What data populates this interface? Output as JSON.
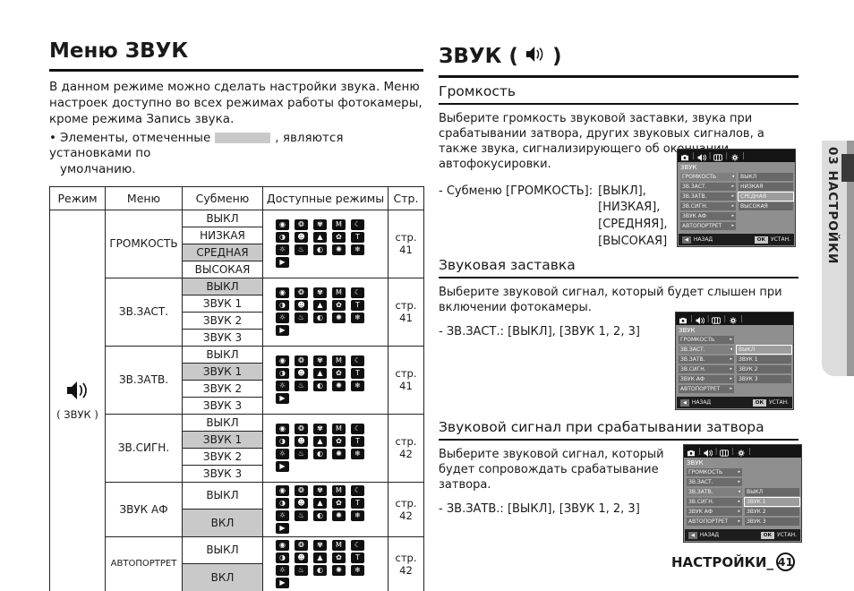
{
  "doc": {
    "left": {
      "title": "Меню ЗВУК",
      "intro": "В данном режиме можно сделать настройки звука. Меню настроек доступно во всех режимах работы фотокамеры, кроме режима Запись звука.",
      "bullet_before": "Элементы, отмеченные",
      "bullet_after": ", являются установками по",
      "bullet_line2": "умолчанию.",
      "table": {
        "headers": [
          "Режим",
          "Меню",
          "Субменю",
          "Доступные режимы",
          "Стр."
        ],
        "mode_cell": {
          "icon": "speaker-icon",
          "label": "( ЗВУК )"
        },
        "groups": [
          {
            "menu": "ГРОМКОСТЬ",
            "options": [
              "ВЫКЛ",
              "НИЗКАЯ",
              "СРЕДНАЯ",
              "ВЫСОКАЯ"
            ],
            "default_index": 2,
            "page": "стр. 41",
            "tall": false
          },
          {
            "menu": "ЗВ.ЗАСТ.",
            "options": [
              "ВЫКЛ",
              "ЗВУК 1",
              "ЗВУК 2",
              "ЗВУК 3"
            ],
            "default_index": 0,
            "page": "стр. 41",
            "tall": false
          },
          {
            "menu": "ЗВ.ЗАТВ.",
            "options": [
              "ВЫКЛ",
              "ЗВУК 1",
              "ЗВУК 2",
              "ЗВУК 3"
            ],
            "default_index": 1,
            "page": "стр. 41",
            "tall": false
          },
          {
            "menu": "ЗВ.СИГН.",
            "options": [
              "ВЫКЛ",
              "ЗВУК 1",
              "ЗВУК 2",
              "ЗВУК 3"
            ],
            "default_index": 1,
            "page": "стр. 42",
            "tall": false
          },
          {
            "menu": "ЗВУК АФ",
            "options": [
              "ВЫКЛ",
              "ВКЛ"
            ],
            "default_index": 1,
            "page": "стр. 42",
            "tall": true
          },
          {
            "menu": "АВТОПОРТРЕТ",
            "options": [
              "ВЫКЛ",
              "ВКЛ"
            ],
            "default_index": 1,
            "page": "стр. 42",
            "tall": true
          }
        ],
        "available_modes": [
          {
            "name": "mode-auto-icon",
            "glyph": "◉"
          },
          {
            "name": "mode-program-icon",
            "glyph": "❂"
          },
          {
            "name": "mode-dis-icon",
            "glyph": "✾"
          },
          {
            "name": "mode-manual-icon",
            "glyph": "M"
          },
          {
            "name": "mode-night-icon",
            "glyph": "☾"
          },
          {
            "name": "mode-scene-icon",
            "glyph": "◑"
          },
          {
            "name": "mode-portrait-icon",
            "glyph": "☻"
          },
          {
            "name": "mode-landscape-icon",
            "glyph": "▲"
          },
          {
            "name": "mode-macro-icon",
            "glyph": "✿"
          },
          {
            "name": "mode-text-icon",
            "glyph": "T"
          },
          {
            "name": "mode-sunset-icon",
            "glyph": "☼"
          },
          {
            "name": "mode-dawn-icon",
            "glyph": "♨"
          },
          {
            "name": "mode-backlight-icon",
            "glyph": "◐"
          },
          {
            "name": "mode-fireworks-icon",
            "glyph": "✺"
          },
          {
            "name": "mode-beach-snow-icon",
            "glyph": "❄"
          },
          {
            "name": "mode-movie-icon",
            "glyph": "▶"
          }
        ]
      }
    },
    "right": {
      "title_prefix": "ЗВУК (",
      "title_suffix": ")",
      "sections": [
        {
          "heading": "Громкость",
          "body": "Выберите громкость звуковой заставки, звука при срабатывании затвора, других звуковых сигналов, а также звука, сигнализирующего об окончании автофокусировки.",
          "sub_label": "-  Субменю [ГРОМКОСТЬ]:",
          "sub_options": [
            "[ВЫКЛ],",
            "[НИЗКАЯ],",
            "[СРЕДНЯЯ],",
            "[ВЫСОКАЯ]"
          ]
        },
        {
          "heading": "Звуковая заставка",
          "body": "Выберите звуковой сигнал, который будет слышен при включении фотокамеры.",
          "sub_line": "- ЗВ.ЗАСТ.: [ВЫКЛ], [ЗВУК 1, 2, 3]"
        },
        {
          "heading": "Звуковой сигнал при срабатывании затвора",
          "body": "Выберите звуковой сигнал, который будет сопровождать срабатывание затвора.",
          "sub_line": "- ЗВ.ЗАТВ.: [ВЫКЛ], [ЗВУК 1, 2, 3]"
        }
      ],
      "footer": {
        "label": "НАСТРОЙКИ_",
        "page_number": "41"
      }
    },
    "side_tab": {
      "label": "03 НАСТРОЙКИ"
    },
    "lcd": {
      "topbar_icons": [
        "camera-icon",
        "speaker-icon",
        "display-icon",
        "gear-icon"
      ],
      "menu_title": "ЗВУК",
      "menu_items": [
        "ГРОМКОСТЬ",
        "ЗВ.ЗАСТ.",
        "ЗВ.ЗАТВ.",
        "ЗВ.СИГН.",
        "ЗВУК АФ",
        "АВТОПОРТРЕТ"
      ],
      "bottom_bar": {
        "back_key": "◀",
        "back_label": "НАЗАД",
        "ok_key": "ОК",
        "set_label": "УСТАН."
      },
      "screens": [
        {
          "selected_item": 0,
          "submenu": [
            "ВЫКЛ",
            "НИЗКАЯ",
            "СРЕДНАЯ",
            "ВЫСОКАЯ"
          ],
          "active_index": 2
        },
        {
          "selected_item": 1,
          "submenu": [
            "ВЫКЛ",
            "ЗВУК 1",
            "ЗВУК 2",
            "ЗВУК 3"
          ],
          "active_index": 0
        },
        {
          "selected_item": 2,
          "submenu": [
            "ВЫКЛ",
            "ЗВУК 1",
            "ЗВУК 2",
            "ЗВУК 3"
          ],
          "active_index": 1
        }
      ]
    },
    "colors": {
      "default_highlight": "#c9c9c9",
      "lcd_body": "#8f8f8f",
      "lcd_bar": "#6b6b6b",
      "lcd_active": "#9c9c9c",
      "lcd_topbar": "#141414",
      "tab_bg": "#dcdcdc",
      "tab_strip": "#9a9a9a",
      "tab_block": "#3a3a3a"
    }
  }
}
